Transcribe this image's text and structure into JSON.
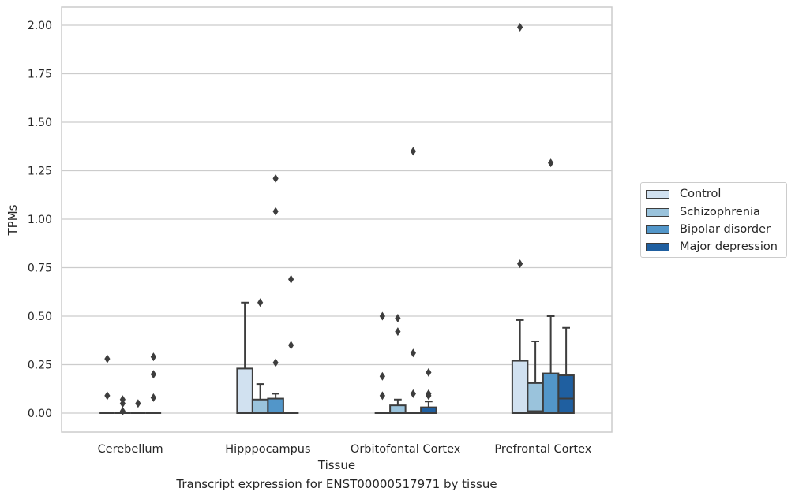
{
  "caption": "Transcript expression for ENST00000517971 by tissue",
  "chart_data": {
    "type": "box",
    "title": "",
    "xlabel": "Tissue",
    "ylabel": "TPMs",
    "ylim": [
      -0.1,
      2.1
    ],
    "yticks": [
      "0.00",
      "0.25",
      "0.50",
      "0.75",
      "1.00",
      "1.25",
      "1.50",
      "1.75",
      "2.00"
    ],
    "grid": "horizontal",
    "legend_position": "right",
    "categories": [
      "Cerebellum",
      "Hipppocampus",
      "Orbitofontal Cortex",
      "Prefrontal Cortex"
    ],
    "series": [
      {
        "name": "Control",
        "color": "#d1e1f0",
        "boxes": [
          {
            "q1": 0,
            "median": 0,
            "q3": 0,
            "whisker_low": 0,
            "whisker_high": 0,
            "outliers": [
              0.28,
              0.09
            ]
          },
          {
            "q1": 0,
            "median": 0,
            "q3": 0.23,
            "whisker_low": 0,
            "whisker_high": 0.57,
            "outliers": []
          },
          {
            "q1": 0,
            "median": 0,
            "q3": 0,
            "whisker_low": 0,
            "whisker_high": 0,
            "outliers": [
              0.5,
              0.19,
              0.09
            ]
          },
          {
            "q1": 0,
            "median": 0,
            "q3": 0.27,
            "whisker_low": 0,
            "whisker_high": 0.48,
            "outliers": [
              1.99,
              0.77
            ]
          }
        ]
      },
      {
        "name": "Schizophrenia",
        "color": "#9ac3dc",
        "boxes": [
          {
            "q1": 0,
            "median": 0,
            "q3": 0,
            "whisker_low": 0,
            "whisker_high": 0,
            "outliers": [
              0.07,
              0.05,
              0.01
            ]
          },
          {
            "q1": 0,
            "median": 0,
            "q3": 0.07,
            "whisker_low": 0,
            "whisker_high": 0.15,
            "outliers": [
              0.57
            ]
          },
          {
            "q1": 0,
            "median": 0,
            "q3": 0.04,
            "whisker_low": 0,
            "whisker_high": 0.07,
            "outliers": [
              0.49,
              0.42
            ]
          },
          {
            "q1": 0,
            "median": 0.01,
            "q3": 0.155,
            "whisker_low": 0,
            "whisker_high": 0.37,
            "outliers": []
          }
        ]
      },
      {
        "name": "Bipolar disorder",
        "color": "#5296c9",
        "boxes": [
          {
            "q1": 0,
            "median": 0,
            "q3": 0,
            "whisker_low": 0,
            "whisker_high": 0,
            "outliers": [
              0.05
            ]
          },
          {
            "q1": 0,
            "median": 0,
            "q3": 0.075,
            "whisker_low": 0,
            "whisker_high": 0.1,
            "outliers": [
              1.21,
              1.04,
              0.26
            ]
          },
          {
            "q1": 0,
            "median": 0,
            "q3": 0,
            "whisker_low": 0,
            "whisker_high": 0,
            "outliers": [
              1.35,
              0.31,
              0.1
            ]
          },
          {
            "q1": 0,
            "median": 0,
            "q3": 0.205,
            "whisker_low": 0,
            "whisker_high": 0.5,
            "outliers": [
              1.29
            ]
          }
        ]
      },
      {
        "name": "Major depression",
        "color": "#1f5fa0",
        "boxes": [
          {
            "q1": 0,
            "median": 0,
            "q3": 0,
            "whisker_low": 0,
            "whisker_high": 0,
            "outliers": [
              0.29,
              0.2,
              0.08
            ]
          },
          {
            "q1": 0,
            "median": 0,
            "q3": 0,
            "whisker_low": 0,
            "whisker_high": 0,
            "outliers": [
              0.69,
              0.35
            ]
          },
          {
            "q1": 0,
            "median": 0,
            "q3": 0.03,
            "whisker_low": 0,
            "whisker_high": 0.06,
            "outliers": [
              0.21,
              0.1,
              0.09
            ]
          },
          {
            "q1": 0,
            "median": 0.075,
            "q3": 0.195,
            "whisker_low": 0,
            "whisker_high": 0.44,
            "outliers": []
          }
        ]
      }
    ]
  }
}
